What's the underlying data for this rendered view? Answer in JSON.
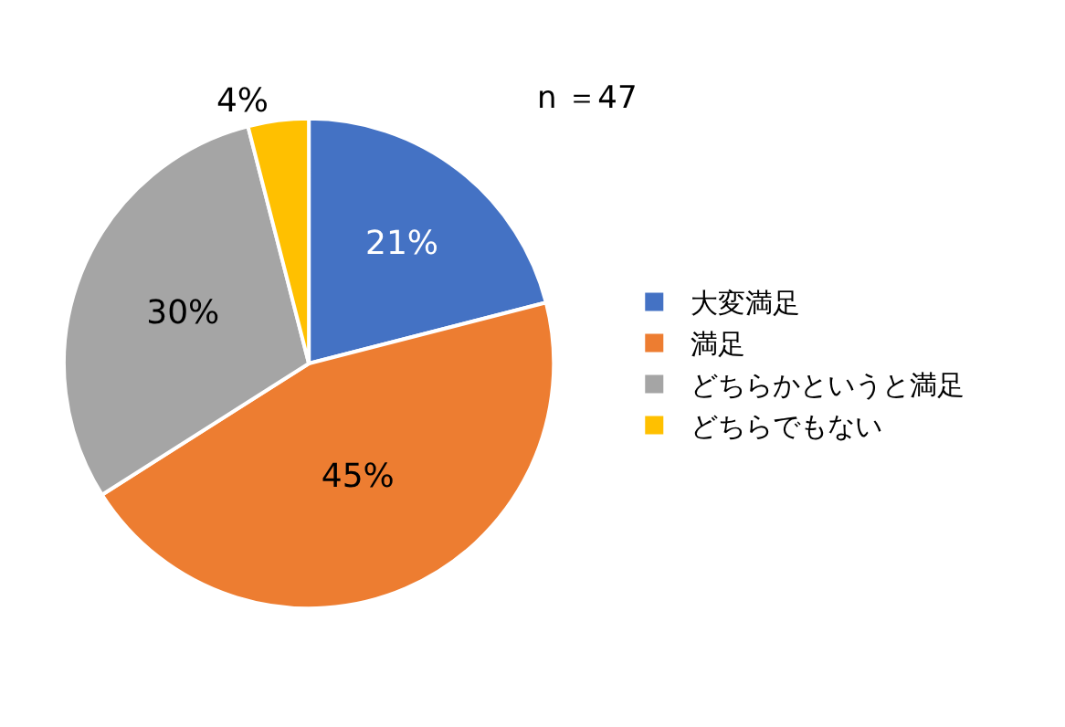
{
  "chart_data": {
    "type": "pie",
    "categories": [
      "大変満足",
      "満足",
      "どちらかというと満足",
      "どちらでもない"
    ],
    "values": [
      21,
      45,
      30,
      4
    ],
    "colors": [
      "#4472c4",
      "#ed7d31",
      "#a5a5a5",
      "#ffc000"
    ],
    "value_labels": [
      "21%",
      "45%",
      "30%",
      "4%"
    ],
    "annotations": [
      "n ＝47"
    ],
    "legend": "right"
  }
}
